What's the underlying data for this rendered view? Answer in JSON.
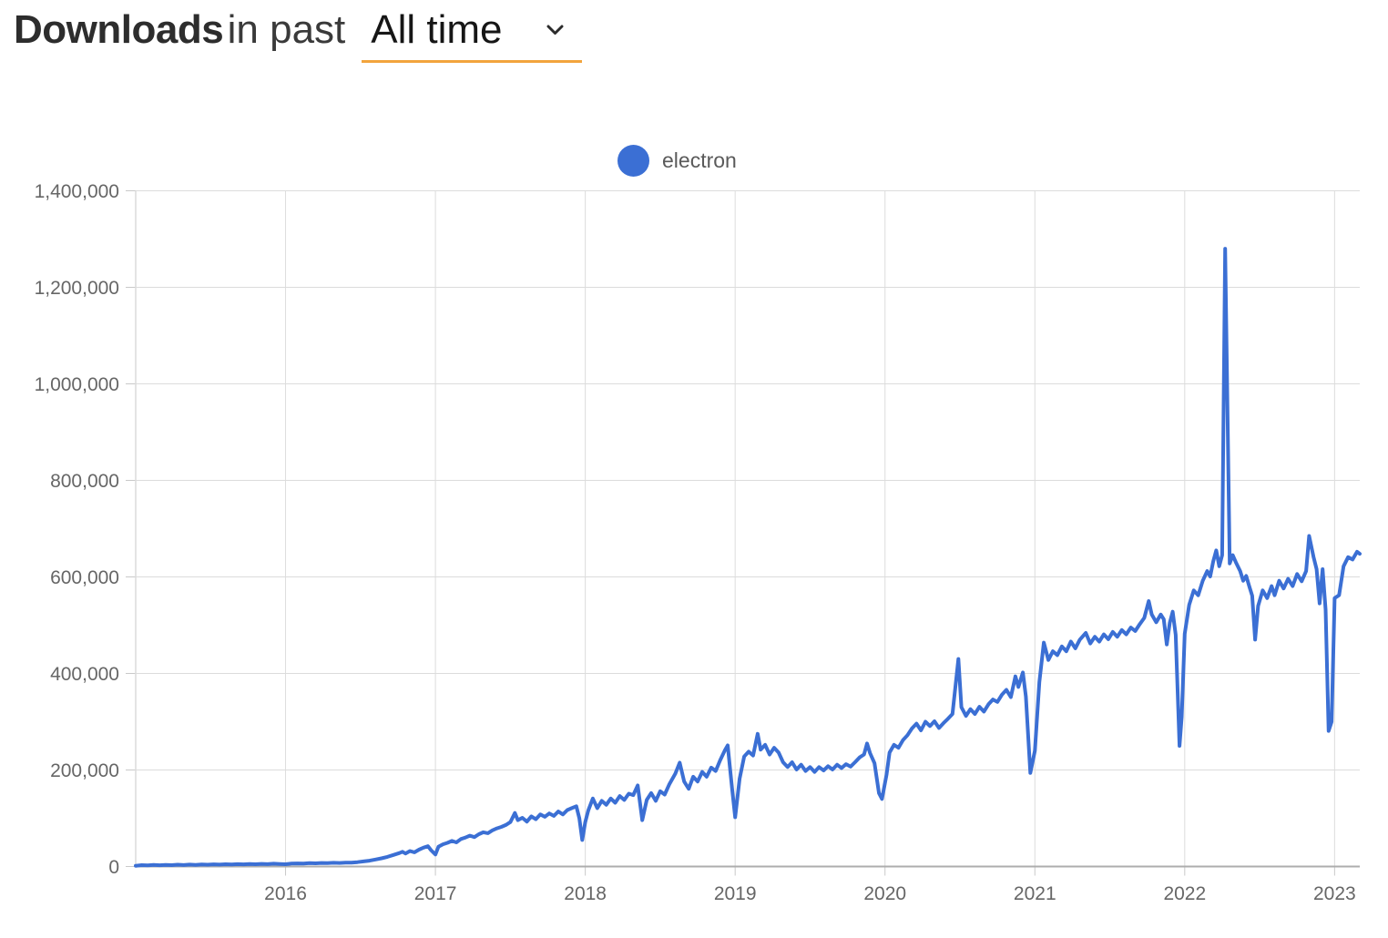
{
  "header": {
    "title_bold": "Downloads",
    "title_rest": "in past",
    "range_value": "All time"
  },
  "legend": {
    "items": [
      {
        "label": "electron",
        "color": "#3B6FD4"
      }
    ]
  },
  "colors": {
    "line": "#3B6FD4",
    "accent_underline": "#F2A43D",
    "grid": "#DCDCDC",
    "axis": "#ADADAD",
    "tick": "#C9C9C9",
    "tick_label": "#666666"
  },
  "chart_data": {
    "type": "line",
    "title": "Downloads in past All time",
    "xlabel": "",
    "ylabel": "",
    "legend_position": "top",
    "grid": true,
    "xlim": [
      2015.0,
      2023.168
    ],
    "ylim": [
      0,
      1400000
    ],
    "x_ticks": [
      2016,
      2017,
      2018,
      2019,
      2020,
      2021,
      2022,
      2023
    ],
    "y_ticks": [
      0,
      200000,
      400000,
      600000,
      800000,
      1000000,
      1200000,
      1400000
    ],
    "series": [
      {
        "name": "electron",
        "color": "#3B6FD4",
        "points": [
          [
            2015.0,
            1500
          ],
          [
            2015.04,
            2800
          ],
          [
            2015.08,
            2200
          ],
          [
            2015.12,
            3200
          ],
          [
            2015.16,
            2600
          ],
          [
            2015.2,
            3400
          ],
          [
            2015.24,
            2900
          ],
          [
            2015.28,
            3800
          ],
          [
            2015.32,
            3100
          ],
          [
            2015.36,
            4000
          ],
          [
            2015.4,
            3400
          ],
          [
            2015.44,
            4200
          ],
          [
            2015.48,
            3800
          ],
          [
            2015.52,
            4500
          ],
          [
            2015.56,
            4000
          ],
          [
            2015.6,
            4800
          ],
          [
            2015.64,
            4300
          ],
          [
            2015.68,
            5000
          ],
          [
            2015.72,
            4500
          ],
          [
            2015.76,
            5300
          ],
          [
            2015.8,
            4800
          ],
          [
            2015.84,
            5500
          ],
          [
            2015.88,
            5000
          ],
          [
            2015.92,
            5800
          ],
          [
            2015.96,
            5200
          ],
          [
            2016.0,
            4800
          ],
          [
            2016.04,
            6000
          ],
          [
            2016.08,
            6500
          ],
          [
            2016.12,
            6100
          ],
          [
            2016.16,
            7000
          ],
          [
            2016.2,
            6600
          ],
          [
            2016.24,
            7400
          ],
          [
            2016.28,
            7000
          ],
          [
            2016.32,
            7800
          ],
          [
            2016.36,
            7400
          ],
          [
            2016.4,
            8200
          ],
          [
            2016.44,
            8000
          ],
          [
            2016.48,
            9000
          ],
          [
            2016.52,
            10500
          ],
          [
            2016.56,
            12000
          ],
          [
            2016.6,
            14500
          ],
          [
            2016.64,
            17000
          ],
          [
            2016.68,
            20000
          ],
          [
            2016.72,
            24000
          ],
          [
            2016.76,
            28000
          ],
          [
            2016.78,
            30500
          ],
          [
            2016.8,
            27000
          ],
          [
            2016.83,
            32000
          ],
          [
            2016.86,
            29500
          ],
          [
            2016.89,
            35000
          ],
          [
            2016.92,
            39000
          ],
          [
            2016.95,
            42000
          ],
          [
            2016.97,
            34000
          ],
          [
            2017.0,
            25000
          ],
          [
            2017.02,
            41000
          ],
          [
            2017.05,
            46000
          ],
          [
            2017.08,
            49000
          ],
          [
            2017.11,
            53000
          ],
          [
            2017.14,
            50000
          ],
          [
            2017.17,
            57000
          ],
          [
            2017.2,
            60000
          ],
          [
            2017.23,
            64000
          ],
          [
            2017.26,
            61000
          ],
          [
            2017.29,
            67000
          ],
          [
            2017.32,
            71000
          ],
          [
            2017.35,
            69000
          ],
          [
            2017.38,
            75000
          ],
          [
            2017.41,
            79000
          ],
          [
            2017.44,
            82000
          ],
          [
            2017.47,
            86000
          ],
          [
            2017.5,
            92000
          ],
          [
            2017.53,
            111000
          ],
          [
            2017.55,
            96000
          ],
          [
            2017.58,
            101000
          ],
          [
            2017.61,
            93000
          ],
          [
            2017.64,
            104000
          ],
          [
            2017.67,
            98000
          ],
          [
            2017.7,
            108000
          ],
          [
            2017.73,
            103000
          ],
          [
            2017.76,
            110000
          ],
          [
            2017.79,
            105000
          ],
          [
            2017.82,
            114000
          ],
          [
            2017.85,
            108000
          ],
          [
            2017.88,
            117000
          ],
          [
            2017.91,
            121000
          ],
          [
            2017.94,
            125000
          ],
          [
            2017.96,
            100000
          ],
          [
            2017.98,
            55000
          ],
          [
            2018.0,
            92000
          ],
          [
            2018.02,
            116000
          ],
          [
            2018.05,
            141000
          ],
          [
            2018.08,
            121000
          ],
          [
            2018.11,
            136000
          ],
          [
            2018.14,
            128000
          ],
          [
            2018.17,
            141000
          ],
          [
            2018.2,
            132000
          ],
          [
            2018.23,
            146000
          ],
          [
            2018.26,
            138000
          ],
          [
            2018.29,
            151000
          ],
          [
            2018.32,
            148000
          ],
          [
            2018.35,
            168000
          ],
          [
            2018.38,
            96000
          ],
          [
            2018.41,
            138000
          ],
          [
            2018.44,
            152000
          ],
          [
            2018.47,
            136000
          ],
          [
            2018.5,
            156000
          ],
          [
            2018.53,
            149000
          ],
          [
            2018.56,
            170000
          ],
          [
            2018.6,
            192000
          ],
          [
            2018.63,
            215000
          ],
          [
            2018.66,
            176000
          ],
          [
            2018.69,
            161000
          ],
          [
            2018.72,
            186000
          ],
          [
            2018.75,
            176000
          ],
          [
            2018.78,
            196000
          ],
          [
            2018.81,
            186000
          ],
          [
            2018.84,
            205000
          ],
          [
            2018.87,
            198000
          ],
          [
            2018.9,
            220000
          ],
          [
            2018.93,
            240000
          ],
          [
            2018.95,
            251000
          ],
          [
            2018.98,
            160000
          ],
          [
            2019.0,
            102000
          ],
          [
            2019.03,
            182000
          ],
          [
            2019.06,
            228000
          ],
          [
            2019.09,
            238000
          ],
          [
            2019.12,
            230000
          ],
          [
            2019.15,
            275000
          ],
          [
            2019.17,
            242000
          ],
          [
            2019.2,
            252000
          ],
          [
            2019.23,
            232000
          ],
          [
            2019.26,
            246000
          ],
          [
            2019.29,
            236000
          ],
          [
            2019.32,
            216000
          ],
          [
            2019.35,
            206000
          ],
          [
            2019.38,
            216000
          ],
          [
            2019.41,
            201000
          ],
          [
            2019.44,
            211000
          ],
          [
            2019.47,
            198000
          ],
          [
            2019.5,
            206000
          ],
          [
            2019.53,
            196000
          ],
          [
            2019.56,
            206000
          ],
          [
            2019.59,
            199000
          ],
          [
            2019.62,
            208000
          ],
          [
            2019.65,
            201000
          ],
          [
            2019.68,
            211000
          ],
          [
            2019.71,
            204000
          ],
          [
            2019.74,
            212000
          ],
          [
            2019.77,
            207000
          ],
          [
            2019.8,
            216000
          ],
          [
            2019.83,
            226000
          ],
          [
            2019.86,
            232000
          ],
          [
            2019.88,
            255000
          ],
          [
            2019.9,
            235000
          ],
          [
            2019.93,
            214000
          ],
          [
            2019.96,
            152000
          ],
          [
            2019.98,
            140000
          ],
          [
            2020.01,
            190000
          ],
          [
            2020.03,
            236000
          ],
          [
            2020.06,
            252000
          ],
          [
            2020.09,
            246000
          ],
          [
            2020.12,
            262000
          ],
          [
            2020.15,
            272000
          ],
          [
            2020.18,
            286000
          ],
          [
            2020.21,
            296000
          ],
          [
            2020.24,
            282000
          ],
          [
            2020.27,
            300000
          ],
          [
            2020.3,
            291000
          ],
          [
            2020.33,
            301000
          ],
          [
            2020.36,
            287000
          ],
          [
            2020.39,
            297000
          ],
          [
            2020.42,
            306000
          ],
          [
            2020.45,
            316000
          ],
          [
            2020.49,
            430000
          ],
          [
            2020.51,
            330000
          ],
          [
            2020.54,
            312000
          ],
          [
            2020.57,
            326000
          ],
          [
            2020.6,
            316000
          ],
          [
            2020.63,
            331000
          ],
          [
            2020.66,
            321000
          ],
          [
            2020.69,
            336000
          ],
          [
            2020.72,
            346000
          ],
          [
            2020.75,
            341000
          ],
          [
            2020.78,
            356000
          ],
          [
            2020.81,
            366000
          ],
          [
            2020.84,
            351000
          ],
          [
            2020.87,
            394000
          ],
          [
            2020.89,
            372000
          ],
          [
            2020.92,
            402000
          ],
          [
            2020.94,
            352000
          ],
          [
            2020.97,
            194000
          ],
          [
            2021.0,
            240000
          ],
          [
            2021.03,
            382000
          ],
          [
            2021.06,
            464000
          ],
          [
            2021.09,
            428000
          ],
          [
            2021.12,
            446000
          ],
          [
            2021.15,
            438000
          ],
          [
            2021.18,
            456000
          ],
          [
            2021.21,
            446000
          ],
          [
            2021.24,
            466000
          ],
          [
            2021.27,
            452000
          ],
          [
            2021.3,
            470000
          ],
          [
            2021.34,
            484000
          ],
          [
            2021.37,
            462000
          ],
          [
            2021.4,
            476000
          ],
          [
            2021.43,
            466000
          ],
          [
            2021.46,
            481000
          ],
          [
            2021.49,
            471000
          ],
          [
            2021.52,
            486000
          ],
          [
            2021.55,
            476000
          ],
          [
            2021.58,
            490000
          ],
          [
            2021.61,
            481000
          ],
          [
            2021.64,
            495000
          ],
          [
            2021.67,
            488000
          ],
          [
            2021.7,
            502000
          ],
          [
            2021.73,
            515000
          ],
          [
            2021.76,
            550000
          ],
          [
            2021.78,
            522000
          ],
          [
            2021.81,
            506000
          ],
          [
            2021.84,
            522000
          ],
          [
            2021.86,
            512000
          ],
          [
            2021.88,
            460000
          ],
          [
            2021.9,
            505000
          ],
          [
            2021.92,
            528000
          ],
          [
            2021.94,
            480000
          ],
          [
            2021.965,
            250000
          ],
          [
            2021.98,
            310000
          ],
          [
            2022.0,
            482000
          ],
          [
            2022.03,
            542000
          ],
          [
            2022.06,
            572000
          ],
          [
            2022.09,
            562000
          ],
          [
            2022.12,
            592000
          ],
          [
            2022.15,
            612000
          ],
          [
            2022.17,
            601000
          ],
          [
            2022.19,
            632000
          ],
          [
            2022.21,
            655000
          ],
          [
            2022.23,
            622000
          ],
          [
            2022.25,
            645000
          ],
          [
            2022.27,
            1280000
          ],
          [
            2022.3,
            628000
          ],
          [
            2022.32,
            645000
          ],
          [
            2022.34,
            631000
          ],
          [
            2022.37,
            612000
          ],
          [
            2022.39,
            592000
          ],
          [
            2022.41,
            602000
          ],
          [
            2022.43,
            581000
          ],
          [
            2022.45,
            561000
          ],
          [
            2022.47,
            470000
          ],
          [
            2022.49,
            540000
          ],
          [
            2022.52,
            572000
          ],
          [
            2022.55,
            556000
          ],
          [
            2022.58,
            581000
          ],
          [
            2022.6,
            562000
          ],
          [
            2022.63,
            592000
          ],
          [
            2022.66,
            576000
          ],
          [
            2022.69,
            596000
          ],
          [
            2022.72,
            581000
          ],
          [
            2022.75,
            606000
          ],
          [
            2022.78,
            591000
          ],
          [
            2022.81,
            612000
          ],
          [
            2022.83,
            685000
          ],
          [
            2022.86,
            641000
          ],
          [
            2022.88,
            616000
          ],
          [
            2022.9,
            545000
          ],
          [
            2022.92,
            616000
          ],
          [
            2022.94,
            532000
          ],
          [
            2022.96,
            281000
          ],
          [
            2022.98,
            300000
          ],
          [
            2023.0,
            556000
          ],
          [
            2023.03,
            562000
          ],
          [
            2023.06,
            622000
          ],
          [
            2023.09,
            641000
          ],
          [
            2023.12,
            636000
          ],
          [
            2023.15,
            652000
          ],
          [
            2023.168,
            648000
          ]
        ]
      }
    ]
  }
}
